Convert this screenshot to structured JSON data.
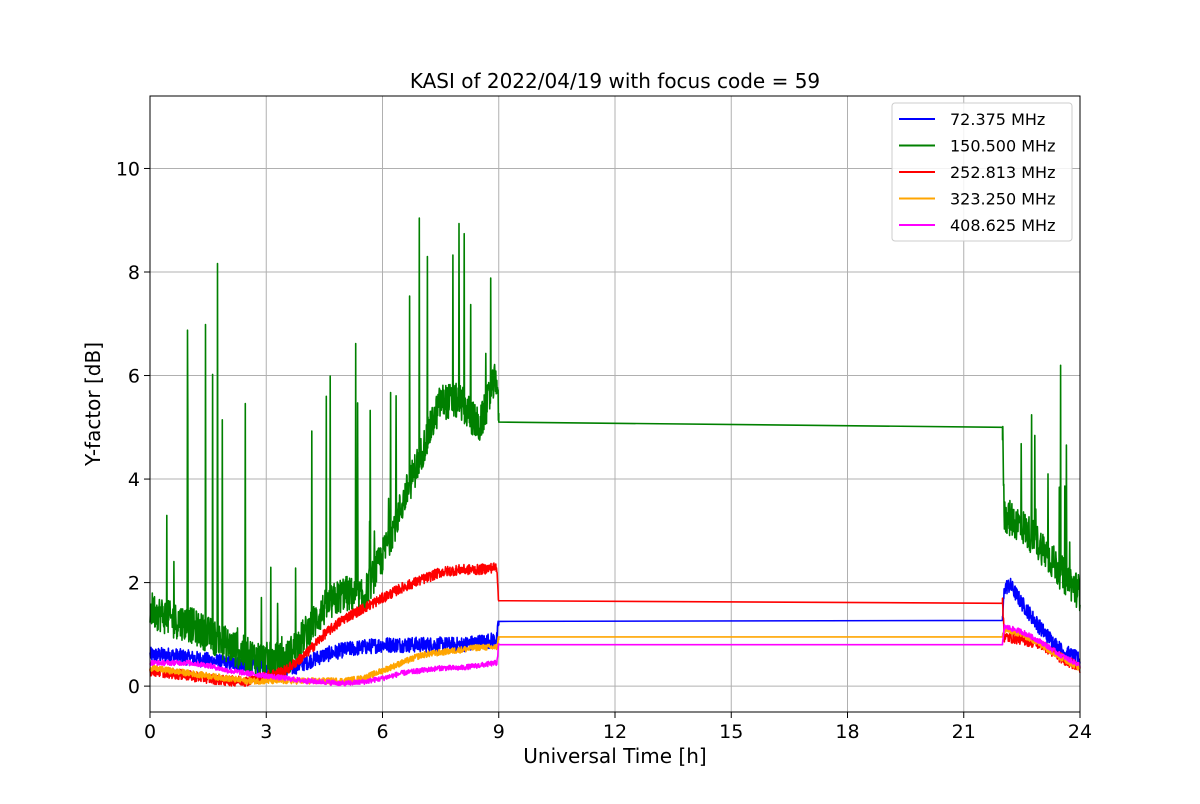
{
  "chart_data": {
    "type": "line",
    "title": "KASI of 2022/04/19 with focus code = 59",
    "xlabel": "Universal Time [h]",
    "ylabel": "Y-factor [dB]",
    "xlim": [
      0,
      24
    ],
    "ylim": [
      -0.5,
      11.4
    ],
    "xticks": [
      0,
      3,
      6,
      9,
      12,
      15,
      18,
      21,
      24
    ],
    "yticks": [
      0,
      2,
      4,
      6,
      8,
      10
    ],
    "grid": true,
    "legend_position": "top-right",
    "series": [
      {
        "name": " 72.375 MHz",
        "color": "#0000ff",
        "x": [
          0,
          0.5,
          1,
          1.5,
          2,
          2.5,
          3,
          3.5,
          4,
          4.5,
          5,
          5.5,
          6,
          6.5,
          7,
          7.5,
          8,
          8.5,
          8.95,
          9.0,
          22.0,
          22.05,
          22.2,
          22.5,
          23,
          23.5,
          24
        ],
        "y": [
          0.6,
          0.6,
          0.55,
          0.5,
          0.45,
          0.4,
          0.35,
          0.3,
          0.45,
          0.6,
          0.7,
          0.75,
          0.8,
          0.8,
          0.8,
          0.8,
          0.8,
          0.85,
          0.9,
          1.25,
          1.27,
          1.9,
          1.95,
          1.6,
          1.1,
          0.7,
          0.5
        ],
        "noise": 0.15
      },
      {
        "name": "150.500 MHz",
        "color": "#008000",
        "x": [
          0,
          0.5,
          1,
          1.5,
          2,
          2.5,
          3,
          3.5,
          4,
          4.5,
          5,
          5.5,
          6,
          6.5,
          7,
          7.5,
          8,
          8.5,
          8.95,
          9.0,
          22.0,
          22.05,
          22.5,
          23,
          23.5,
          24
        ],
        "y": [
          1.5,
          1.3,
          1.2,
          1.0,
          0.8,
          0.6,
          0.5,
          0.5,
          1.0,
          1.5,
          1.8,
          1.7,
          2.5,
          3.5,
          4.5,
          5.5,
          5.5,
          5.0,
          6.0,
          5.1,
          5.0,
          3.3,
          3.1,
          2.7,
          2.2,
          1.8
        ],
        "noise": 0.35
      },
      {
        "name": "252.813 MHz",
        "color": "#ff0000",
        "x": [
          0,
          0.5,
          1,
          1.5,
          2,
          2.5,
          3,
          3.5,
          4,
          4.5,
          5,
          5.5,
          6,
          6.5,
          7,
          7.5,
          8,
          8.5,
          8.95,
          9.0,
          22.0,
          22.05,
          22.5,
          23,
          23.5,
          24
        ],
        "y": [
          0.3,
          0.25,
          0.2,
          0.15,
          0.1,
          0.1,
          0.2,
          0.3,
          0.6,
          1.0,
          1.3,
          1.5,
          1.7,
          1.9,
          2.05,
          2.2,
          2.25,
          2.25,
          2.3,
          1.65,
          1.6,
          0.95,
          0.9,
          0.8,
          0.55,
          0.35
        ],
        "noise": 0.1
      },
      {
        "name": "323.250 MHz",
        "color": "#ffa500",
        "x": [
          0,
          0.5,
          1,
          1.5,
          2,
          2.5,
          3,
          3.5,
          4,
          4.5,
          5,
          5.5,
          6,
          6.5,
          7,
          7.5,
          8,
          8.5,
          8.95,
          9.0,
          22.0,
          22.05,
          22.5,
          23,
          23.5,
          24
        ],
        "y": [
          0.35,
          0.3,
          0.25,
          0.2,
          0.15,
          0.1,
          0.1,
          0.1,
          0.1,
          0.1,
          0.1,
          0.15,
          0.3,
          0.45,
          0.6,
          0.65,
          0.7,
          0.75,
          0.75,
          0.95,
          0.95,
          1.1,
          1.0,
          0.8,
          0.55,
          0.35
        ],
        "noise": 0.06
      },
      {
        "name": "408.625 MHz",
        "color": "#ff00ff",
        "x": [
          0,
          0.5,
          1,
          1.5,
          2,
          2.5,
          3,
          3.5,
          4,
          4.5,
          5,
          5.5,
          6,
          6.5,
          7,
          7.5,
          8,
          8.5,
          8.95,
          9.0,
          22.0,
          22.05,
          22.5,
          23,
          23.5,
          24
        ],
        "y": [
          0.45,
          0.45,
          0.45,
          0.4,
          0.3,
          0.25,
          0.2,
          0.15,
          0.1,
          0.08,
          0.05,
          0.08,
          0.15,
          0.25,
          0.3,
          0.35,
          0.35,
          0.4,
          0.45,
          0.8,
          0.8,
          1.15,
          1.05,
          0.85,
          0.6,
          0.4
        ],
        "noise": 0.05
      }
    ]
  }
}
